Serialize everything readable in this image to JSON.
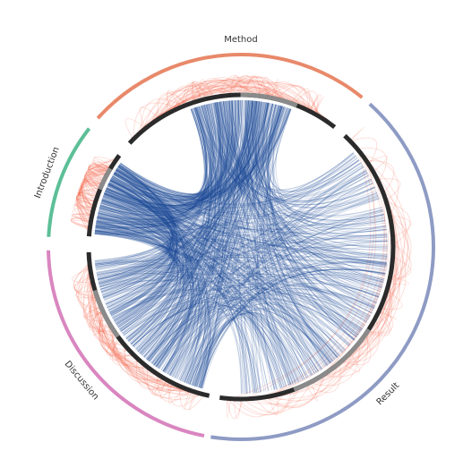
{
  "sections": [
    {
      "label": "Method"
    },
    {
      "label": "Result"
    },
    {
      "label": "Discussion"
    },
    {
      "label": "Introduction"
    }
  ]
}
